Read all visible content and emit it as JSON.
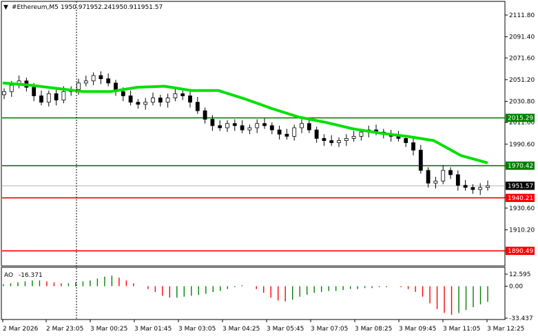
{
  "header": {
    "arrow": "▼",
    "symbol": "#Ethereum,M5",
    "open": "1950.97",
    "high": "1952.24",
    "low": "1950.91",
    "close": "1951.57"
  },
  "colors": {
    "candle": "#000000",
    "ma": "#00e000",
    "support_green": "#008000",
    "support_red": "#ff0000",
    "ao_up": "#008000",
    "ao_down": "#ff0000",
    "grid": "#c8c8c8",
    "current_price_bg": "#000000"
  },
  "chart_data": [
    {
      "type": "candlestick",
      "title": "#Ethereum,M5",
      "ylim": [
        1877,
        2124
      ],
      "y_ticks": [
        "2111.80",
        "2091.40",
        "2071.60",
        "2051.20",
        "2030.80",
        "2011.00",
        "1990.60",
        "1970.20",
        "1940.60",
        "1930.60",
        "1910.20",
        "1890.40"
      ],
      "x_ticks": [
        "2 Mar 2026",
        "2 Mar 23:05",
        "3 Mar 00:25",
        "3 Mar 01:45",
        "3 Mar 03:05",
        "3 Mar 04:25",
        "3 Mar 05:45",
        "3 Mar 07:05",
        "3 Mar 08:25",
        "3 Mar 09:45",
        "3 Mar 11:05",
        "3 Mar 12:25"
      ],
      "ma_series": [
        2048,
        2046,
        2043,
        2040,
        2040,
        2044,
        2045,
        2041,
        2041,
        2033,
        2024,
        2016,
        2011,
        2005,
        2001,
        1998,
        1994,
        1980,
        1973
      ],
      "candle_closes": [
        2040,
        2046,
        2050,
        2044,
        2036,
        2030,
        2038,
        2032,
        2040,
        2042,
        2048,
        2050,
        2055,
        2052,
        2048,
        2040,
        2036,
        2030,
        2028,
        2030,
        2034,
        2030,
        2034,
        2038,
        2036,
        2030,
        2022,
        2014,
        2008,
        2006,
        2010,
        2008,
        2004,
        2006,
        2010,
        2008,
        2004,
        2000,
        1998,
        2006,
        2010,
        2004,
        1996,
        1994,
        1992,
        1994,
        1996,
        1998,
        2002,
        2004,
        2002,
        2000,
        1998,
        1996,
        1992,
        1985,
        1966,
        1954,
        1956,
        1966,
        1962,
        1952,
        1950,
        1948,
        1950,
        1951.57
      ],
      "horizontal_levels": [
        {
          "value": "2015.29",
          "price": 2015.29,
          "color": "#008000"
        },
        {
          "value": "1970.42",
          "price": 1970.42,
          "color": "#008000"
        },
        {
          "value": "1940.21",
          "price": 1940.21,
          "color": "#ff0000"
        },
        {
          "value": "1890.49",
          "price": 1890.49,
          "color": "#ff0000"
        }
      ],
      "current_price": {
        "value": "1951.57",
        "price": 1951.57
      }
    },
    {
      "type": "bar",
      "title": "AO -16.371",
      "label": "AO",
      "value": "-16.371",
      "ylim": [
        -33.437,
        12.595
      ],
      "y_ticks": [
        "12.595",
        "0.00",
        "-33.437"
      ],
      "values": [
        2,
        3,
        4,
        5,
        6,
        6,
        5,
        4,
        3,
        3,
        4,
        5,
        6,
        8,
        10,
        11,
        9,
        6,
        3,
        0,
        -3,
        -6,
        -10,
        -12,
        -12,
        -11,
        -10,
        -9,
        -8,
        -6,
        -5,
        -3,
        -1,
        1,
        0,
        -3,
        -7,
        -12,
        -15,
        -16,
        -14,
        -11,
        -9,
        -7,
        -6,
        -5,
        -5,
        -4,
        -3,
        -3,
        -2,
        -2,
        -1,
        -1,
        0,
        -1,
        -3,
        -6,
        -11,
        -18,
        -24,
        -28,
        -30,
        -28,
        -25,
        -22,
        -19,
        -16.371
      ]
    }
  ]
}
